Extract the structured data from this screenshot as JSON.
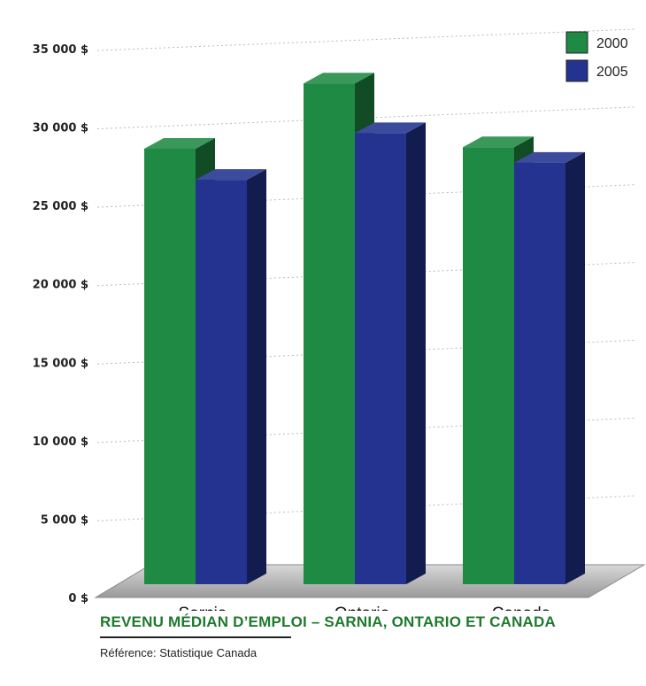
{
  "chart_data": {
    "type": "bar",
    "title": "REVENU MÉDIAN D’EMPLOI – SARNIA, ONTARIO ET CANADA",
    "source": "Référence: Statistique Canada",
    "categories": [
      "Sarnia",
      "Ontario",
      "Canada"
    ],
    "series": [
      {
        "name": "2000",
        "color": "#1e8a44",
        "values": [
          28000,
          32200,
          28100
        ]
      },
      {
        "name": "2005",
        "color": "#23338f",
        "values": [
          26000,
          29000,
          27100
        ]
      }
    ],
    "y_ticks": [
      "0 $",
      "5 000 $",
      "10 000 $",
      "15 000 $",
      "20 000 $",
      "25 000 $",
      "30 000 $",
      "35 000 $"
    ],
    "ylim": [
      0,
      35000
    ],
    "legend_position": "top-right",
    "grid": true,
    "style": "3d"
  }
}
